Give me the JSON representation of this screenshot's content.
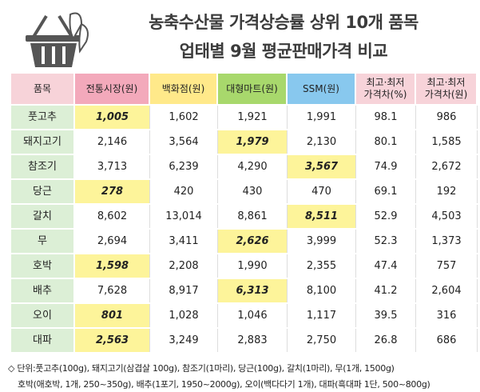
{
  "header": {
    "title_line1": "농축수산물  가격상승률 상위 10개 품목",
    "title_line2": "업태별 9월 평균판매가격 비교"
  },
  "table": {
    "columns": [
      "품목",
      "전통시장(원)",
      "백화점(원)",
      "대형마트(원)",
      "SSM(원)",
      "최고·최저\n가격차(%)",
      "최고·최저\n가격차(원)"
    ],
    "rows": [
      [
        "풋고추",
        "1,005",
        "1,602",
        "1,921",
        "1,991",
        "98.1",
        "986"
      ],
      [
        "돼지고기",
        "2,146",
        "3,564",
        "1,979",
        "2,130",
        "80.1",
        "1,585"
      ],
      [
        "참조기",
        "3,713",
        "6,239",
        "4,290",
        "3,567",
        "74.9",
        "2,672"
      ],
      [
        "당근",
        "278",
        "420",
        "430",
        "470",
        "69.1",
        "192"
      ],
      [
        "갈치",
        "8,602",
        "13,014",
        "8,861",
        "8,511",
        "52.9",
        "4,503"
      ],
      [
        "무",
        "2,694",
        "3,411",
        "2,626",
        "3,999",
        "52.3",
        "1,373"
      ],
      [
        "호박",
        "1,598",
        "2,208",
        "1,990",
        "2,355",
        "47.4",
        "757"
      ],
      [
        "배추",
        "7,628",
        "8,917",
        "6,313",
        "8,100",
        "41.2",
        "2,604"
      ],
      [
        "오이",
        "801",
        "1,028",
        "1,046",
        "1,117",
        "39.5",
        "316"
      ],
      [
        "대파",
        "2,563",
        "3,249",
        "2,883",
        "2,750",
        "26.8",
        "686"
      ]
    ]
  },
  "notes": [
    "◇ 단위:풋고추(100g), 돼지고기(삼겹살 100g), 참조기(1마리), 당근(100g), 갈치(1마리), 무(1개, 1500g)",
    "호박(애호박, 1개, 250~350g), 배추(1포기, 1950~2000g), 오이(백다다기 1개), 대파(흑대파 1단, 500~800g)"
  ]
}
